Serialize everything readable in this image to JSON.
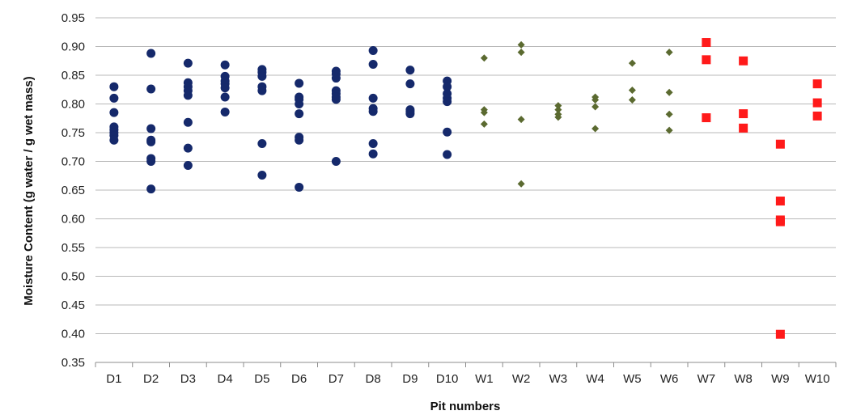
{
  "chart_data": {
    "type": "scatter",
    "title": "",
    "xlabel": "Pit numbers",
    "ylabel": "Moisture Content (g water / g wet mass)",
    "ylim": [
      0.35,
      0.95
    ],
    "yticks": [
      "0.35",
      "0.40",
      "0.45",
      "0.50",
      "0.55",
      "0.60",
      "0.65",
      "0.70",
      "0.75",
      "0.80",
      "0.85",
      "0.90",
      "0.95"
    ],
    "grid": true,
    "categories": [
      "D1",
      "D2",
      "D3",
      "D4",
      "D5",
      "D6",
      "D7",
      "D8",
      "D9",
      "D10",
      "W1",
      "W2",
      "W3",
      "W4",
      "W5",
      "W6",
      "W7",
      "W8",
      "W9",
      "W10"
    ],
    "series": [
      {
        "marker": "circle",
        "color": "#15296b",
        "points": [
          {
            "x": "D1",
            "y": [
              0.83,
              0.81,
              0.785,
              0.76,
              0.755,
              0.75,
              0.745,
              0.737
            ]
          },
          {
            "x": "D2",
            "y": [
              0.888,
              0.826,
              0.757,
              0.737,
              0.734,
              0.705,
              0.7,
              0.652
            ]
          },
          {
            "x": "D3",
            "y": [
              0.871,
              0.837,
              0.83,
              0.823,
              0.815,
              0.768,
              0.723,
              0.693
            ]
          },
          {
            "x": "D4",
            "y": [
              0.868,
              0.848,
              0.84,
              0.835,
              0.828,
              0.812,
              0.786
            ]
          },
          {
            "x": "D5",
            "y": [
              0.86,
              0.855,
              0.848,
              0.83,
              0.823,
              0.731,
              0.676
            ]
          },
          {
            "x": "D6",
            "y": [
              0.836,
              0.812,
              0.808,
              0.8,
              0.783,
              0.742,
              0.737,
              0.655
            ]
          },
          {
            "x": "D7",
            "y": [
              0.857,
              0.852,
              0.845,
              0.823,
              0.818,
              0.812,
              0.808,
              0.7
            ]
          },
          {
            "x": "D8",
            "y": [
              0.893,
              0.869,
              0.81,
              0.792,
              0.787,
              0.731,
              0.713
            ]
          },
          {
            "x": "D9",
            "y": [
              0.859,
              0.835,
              0.79,
              0.787,
              0.783
            ]
          },
          {
            "x": "D10",
            "y": [
              0.84,
              0.83,
              0.818,
              0.81,
              0.804,
              0.751,
              0.712
            ]
          }
        ]
      },
      {
        "marker": "diamond",
        "color": "#5b6a30",
        "points": [
          {
            "x": "W1",
            "y": [
              0.88,
              0.79,
              0.785,
              0.765
            ]
          },
          {
            "x": "W2",
            "y": [
              0.903,
              0.89,
              0.773,
              0.661
            ]
          },
          {
            "x": "W3",
            "y": [
              0.797,
              0.79,
              0.782,
              0.777
            ]
          },
          {
            "x": "W4",
            "y": [
              0.812,
              0.807,
              0.795,
              0.757
            ]
          },
          {
            "x": "W5",
            "y": [
              0.871,
              0.824,
              0.807
            ]
          },
          {
            "x": "W6",
            "y": [
              0.89,
              0.82,
              0.782,
              0.754
            ]
          }
        ]
      },
      {
        "marker": "square",
        "color": "#ff1a1a",
        "points": [
          {
            "x": "W7",
            "y": [
              0.907,
              0.877,
              0.776
            ]
          },
          {
            "x": "W8",
            "y": [
              0.875,
              0.783,
              0.758
            ]
          },
          {
            "x": "W9",
            "y": [
              0.73,
              0.631,
              0.598,
              0.595,
              0.399
            ]
          },
          {
            "x": "W10",
            "y": [
              0.835,
              0.802,
              0.779
            ]
          }
        ]
      }
    ]
  }
}
